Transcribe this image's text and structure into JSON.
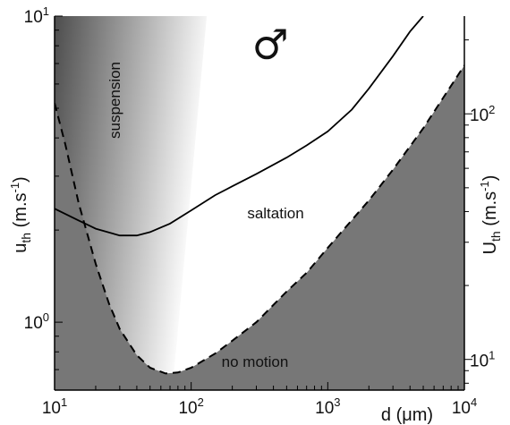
{
  "chart_data": {
    "type": "line",
    "x_scale": "log",
    "y_scale": "log",
    "xlim": [
      10,
      10000
    ],
    "ylim": [
      0.6,
      10
    ],
    "right_ylim": [
      7.5,
      250
    ],
    "xlabel": "d (μm)",
    "ylabel": "u_th (m.s^-1)",
    "right_ylabel": "U_th (m.s^-1)",
    "x_ticks": [
      {
        "value": 10,
        "label": "10^1"
      },
      {
        "value": 100,
        "label": "10^2"
      },
      {
        "value": 1000,
        "label": "10^3"
      },
      {
        "value": 10000,
        "label": "10^4"
      }
    ],
    "y_ticks": [
      {
        "value": 1,
        "label": "10^0"
      },
      {
        "value": 10,
        "label": "10^1"
      }
    ],
    "right_y_ticks": [
      {
        "value": 10,
        "label": "10^1"
      },
      {
        "value": 100,
        "label": "10^2"
      }
    ],
    "symbol": "♂",
    "series": [
      {
        "style": "solid",
        "x": [
          10,
          15,
          20,
          30,
          40,
          50,
          70,
          100,
          150,
          200,
          300,
          500,
          700,
          1000,
          1500,
          2000,
          3000,
          4000,
          5000
        ],
        "y": [
          2.35,
          2.15,
          2.02,
          1.92,
          1.92,
          1.97,
          2.1,
          2.32,
          2.6,
          2.78,
          3.05,
          3.45,
          3.78,
          4.2,
          4.95,
          5.8,
          7.4,
          8.9,
          10.0
        ]
      },
      {
        "style": "dashed",
        "x": [
          10,
          12,
          15,
          20,
          25,
          30,
          40,
          50,
          65,
          80,
          100,
          150,
          200,
          300,
          500,
          700,
          1000,
          2000,
          3000,
          5000,
          10000
        ],
        "y": [
          5.2,
          3.8,
          2.45,
          1.55,
          1.15,
          0.95,
          0.78,
          0.71,
          0.68,
          0.685,
          0.71,
          0.79,
          0.87,
          1.0,
          1.26,
          1.45,
          1.75,
          2.5,
          3.15,
          4.3,
          6.9
        ]
      }
    ],
    "annotations": [
      {
        "text": "suspension",
        "region": "upper left, shaded gradient"
      },
      {
        "text": "saltation",
        "region": "middle"
      },
      {
        "text": "no motion",
        "region": "bottom, gray fill"
      }
    ],
    "colors": {
      "no_motion_fill": "#777777",
      "gradient_dark": "#4d4d4d",
      "gradient_light": "#ffffff",
      "line": "#000000",
      "axis": "#000000"
    }
  }
}
